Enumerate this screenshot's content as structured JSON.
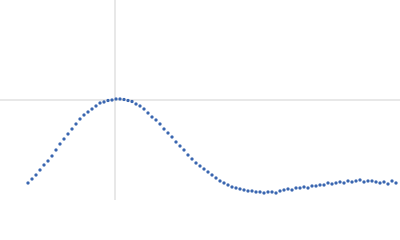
{
  "chart_data": {
    "type": "scatter",
    "color": "#3a66b0",
    "xlim": [
      0,
      400
    ],
    "ylim": [
      0,
      200
    ],
    "reference_lines": {
      "x": [
        115
      ],
      "y": [
        100
      ],
      "color": "#d0d0d0"
    },
    "x": [
      28,
      32,
      36,
      40,
      44,
      48,
      52,
      56,
      60,
      64,
      68,
      72,
      76,
      80,
      84,
      88,
      92,
      96,
      100,
      104,
      108,
      112,
      116,
      120,
      124,
      128,
      132,
      136,
      140,
      144,
      148,
      152,
      156,
      160,
      164,
      168,
      172,
      176,
      180,
      184,
      188,
      192,
      196,
      200,
      204,
      208,
      212,
      216,
      220,
      224,
      228,
      232,
      236,
      240,
      244,
      248,
      252,
      256,
      260,
      264,
      268,
      272,
      276,
      280,
      284,
      288,
      292,
      296,
      300,
      304,
      308,
      312,
      316,
      320,
      324,
      328,
      332,
      336,
      340,
      344,
      348,
      352,
      356,
      360,
      364,
      368,
      372,
      376,
      380,
      384,
      388,
      392,
      396
    ],
    "values": [
      17,
      21,
      25,
      30,
      35,
      39,
      44,
      50,
      56,
      61,
      66,
      71,
      76,
      81,
      85,
      88,
      91,
      94,
      97,
      98,
      99.5,
      100,
      101,
      101,
      100.5,
      99.5,
      98.5,
      96,
      94,
      91,
      87,
      83,
      80,
      76,
      71,
      67,
      63,
      58,
      54,
      50,
      45,
      41,
      37,
      34,
      31,
      28,
      25,
      22,
      19,
      17,
      15,
      13,
      12,
      11,
      10,
      9,
      9,
      8,
      8,
      7,
      8,
      8,
      7,
      9,
      10,
      11,
      10,
      12,
      12,
      13,
      12,
      14,
      14,
      15,
      15,
      17,
      16,
      17,
      18,
      17,
      19,
      18,
      19,
      20,
      18,
      19,
      19,
      18,
      17,
      18,
      16,
      19,
      17
    ]
  }
}
